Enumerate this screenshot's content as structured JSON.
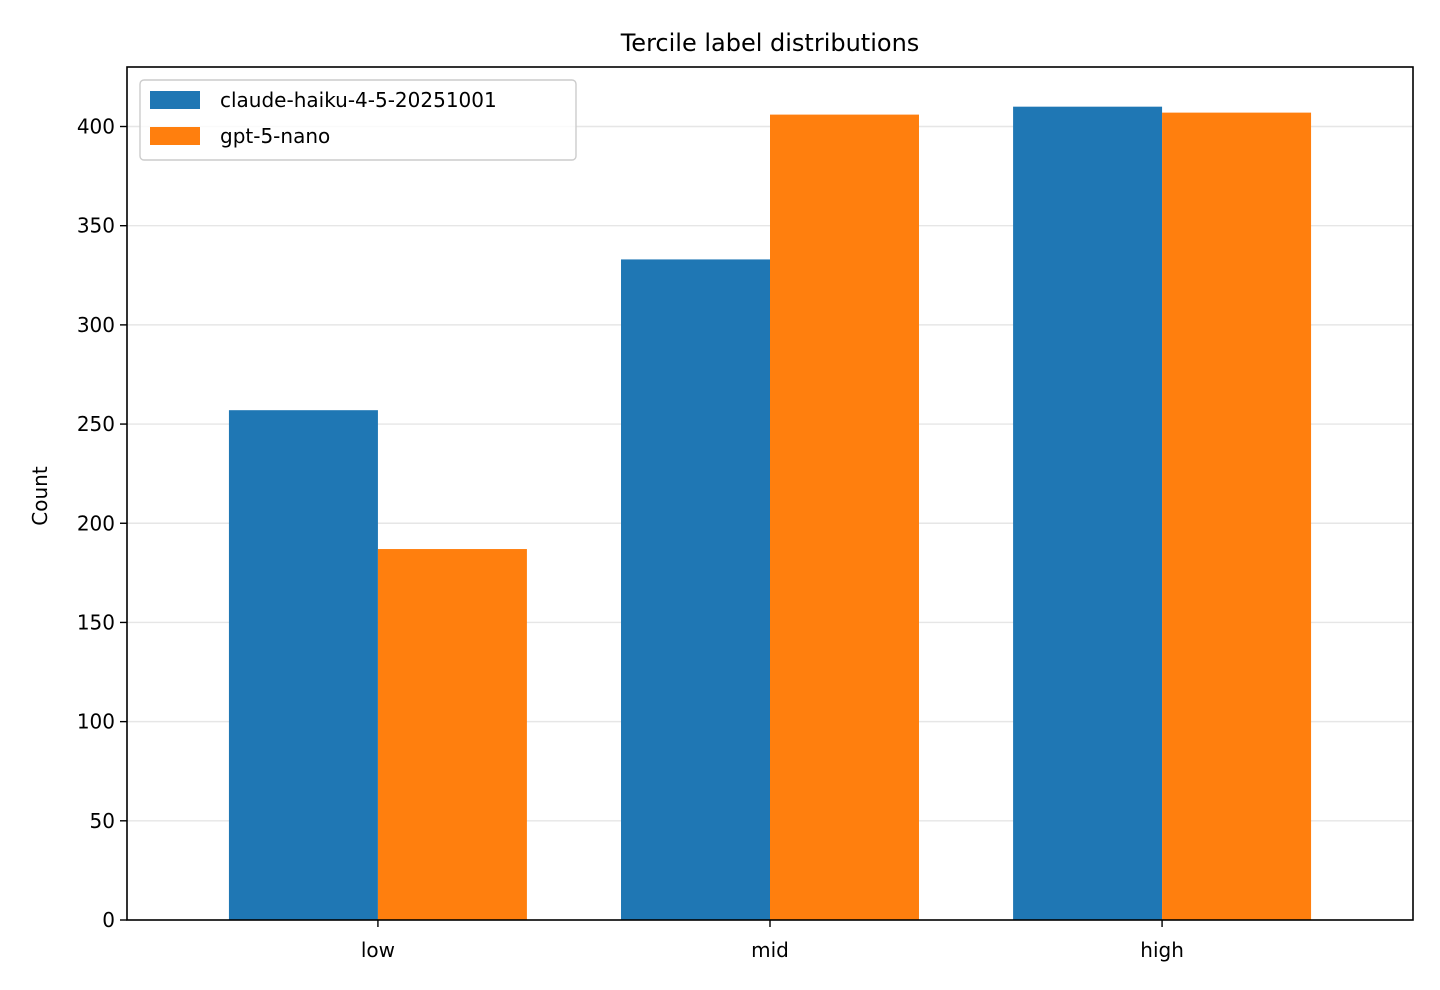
{
  "chart_data": {
    "type": "bar",
    "title": "Tercile label distributions",
    "xlabel": "",
    "ylabel": "Count",
    "categories": [
      "low",
      "mid",
      "high"
    ],
    "series": [
      {
        "name": "claude-haiku-4-5-20251001",
        "values": [
          257,
          333,
          410
        ],
        "color": "#1f77b4"
      },
      {
        "name": "gpt-5-nano",
        "values": [
          187,
          406,
          407
        ],
        "color": "#ff7f0e"
      }
    ],
    "ylim": [
      0,
      430
    ],
    "yticks": [
      0,
      50,
      100,
      150,
      200,
      250,
      300,
      350,
      400
    ],
    "grid": "y",
    "legend_position": "top-left"
  }
}
